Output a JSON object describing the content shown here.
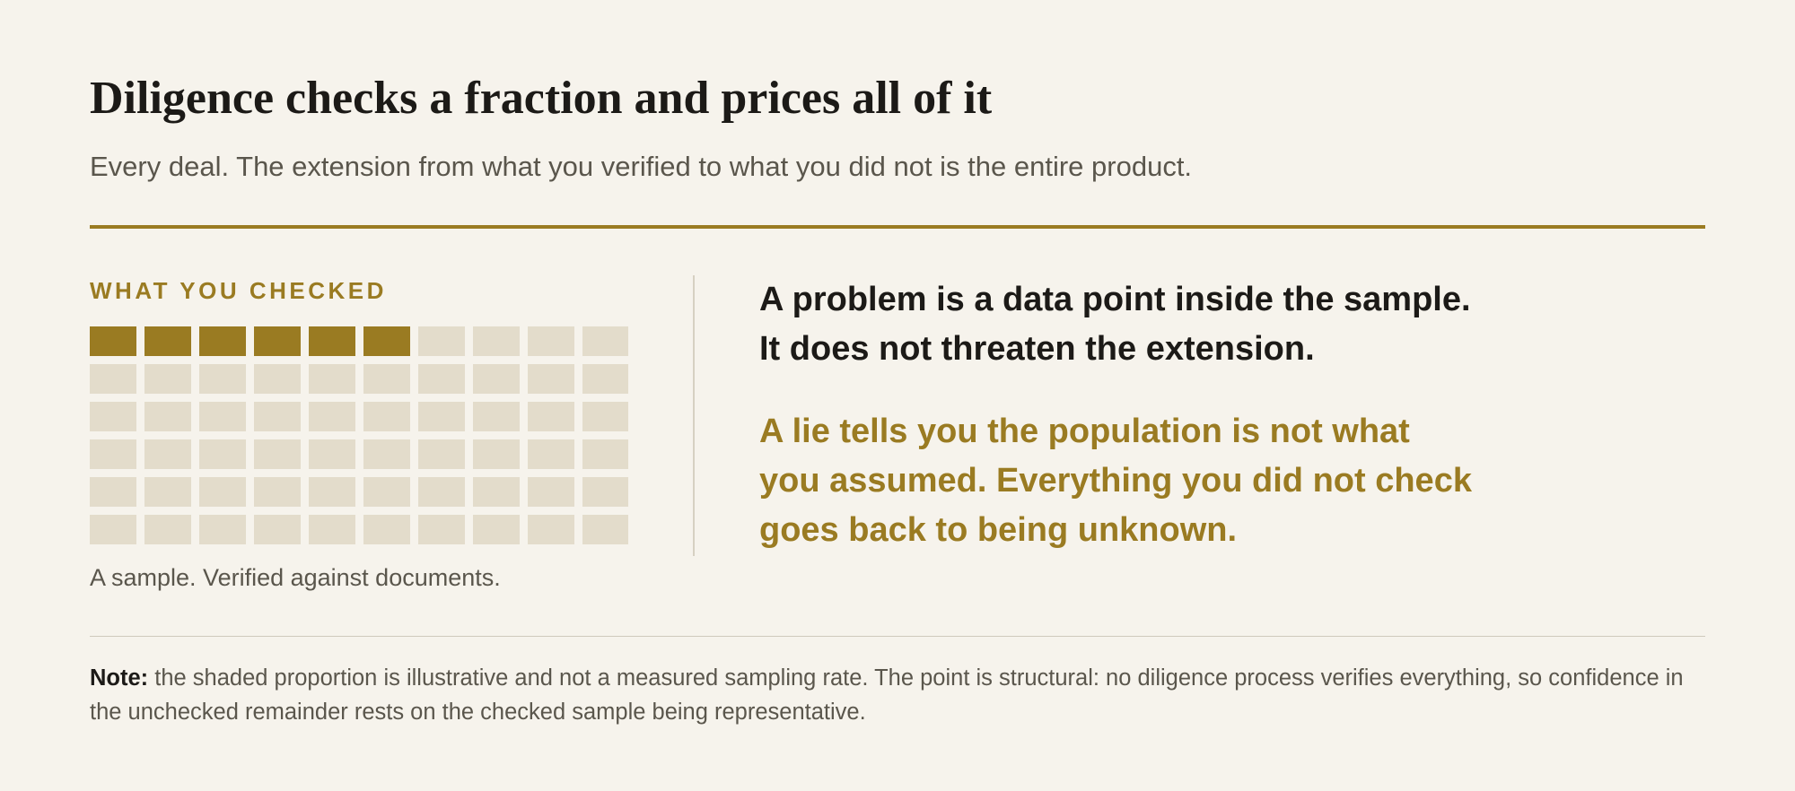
{
  "header": {
    "title": "Diligence checks a fraction and prices all of it",
    "subtitle": "Every deal. The extension from what you verified to what you did not is the entire product."
  },
  "sample": {
    "label": "WHAT YOU CHECKED",
    "caption": "A sample. Verified against documents."
  },
  "statements": {
    "problem": {
      "before": "A",
      "emphasis": "problem",
      "after": "is a data point inside the sample.",
      "line2": "It does not threaten the extension."
    },
    "lie": {
      "lines": [
        "A lie tells you the population is not what",
        "you assumed. Everything you did not check",
        "goes back to being unknown."
      ]
    }
  },
  "note": {
    "label": "Note:",
    "text": "the shaded proportion is illustrative and not a measured sampling rate. The point is structural: no diligence process verifies everything, so confidence in the unchecked remainder rests on the checked sample being representative."
  }
}
